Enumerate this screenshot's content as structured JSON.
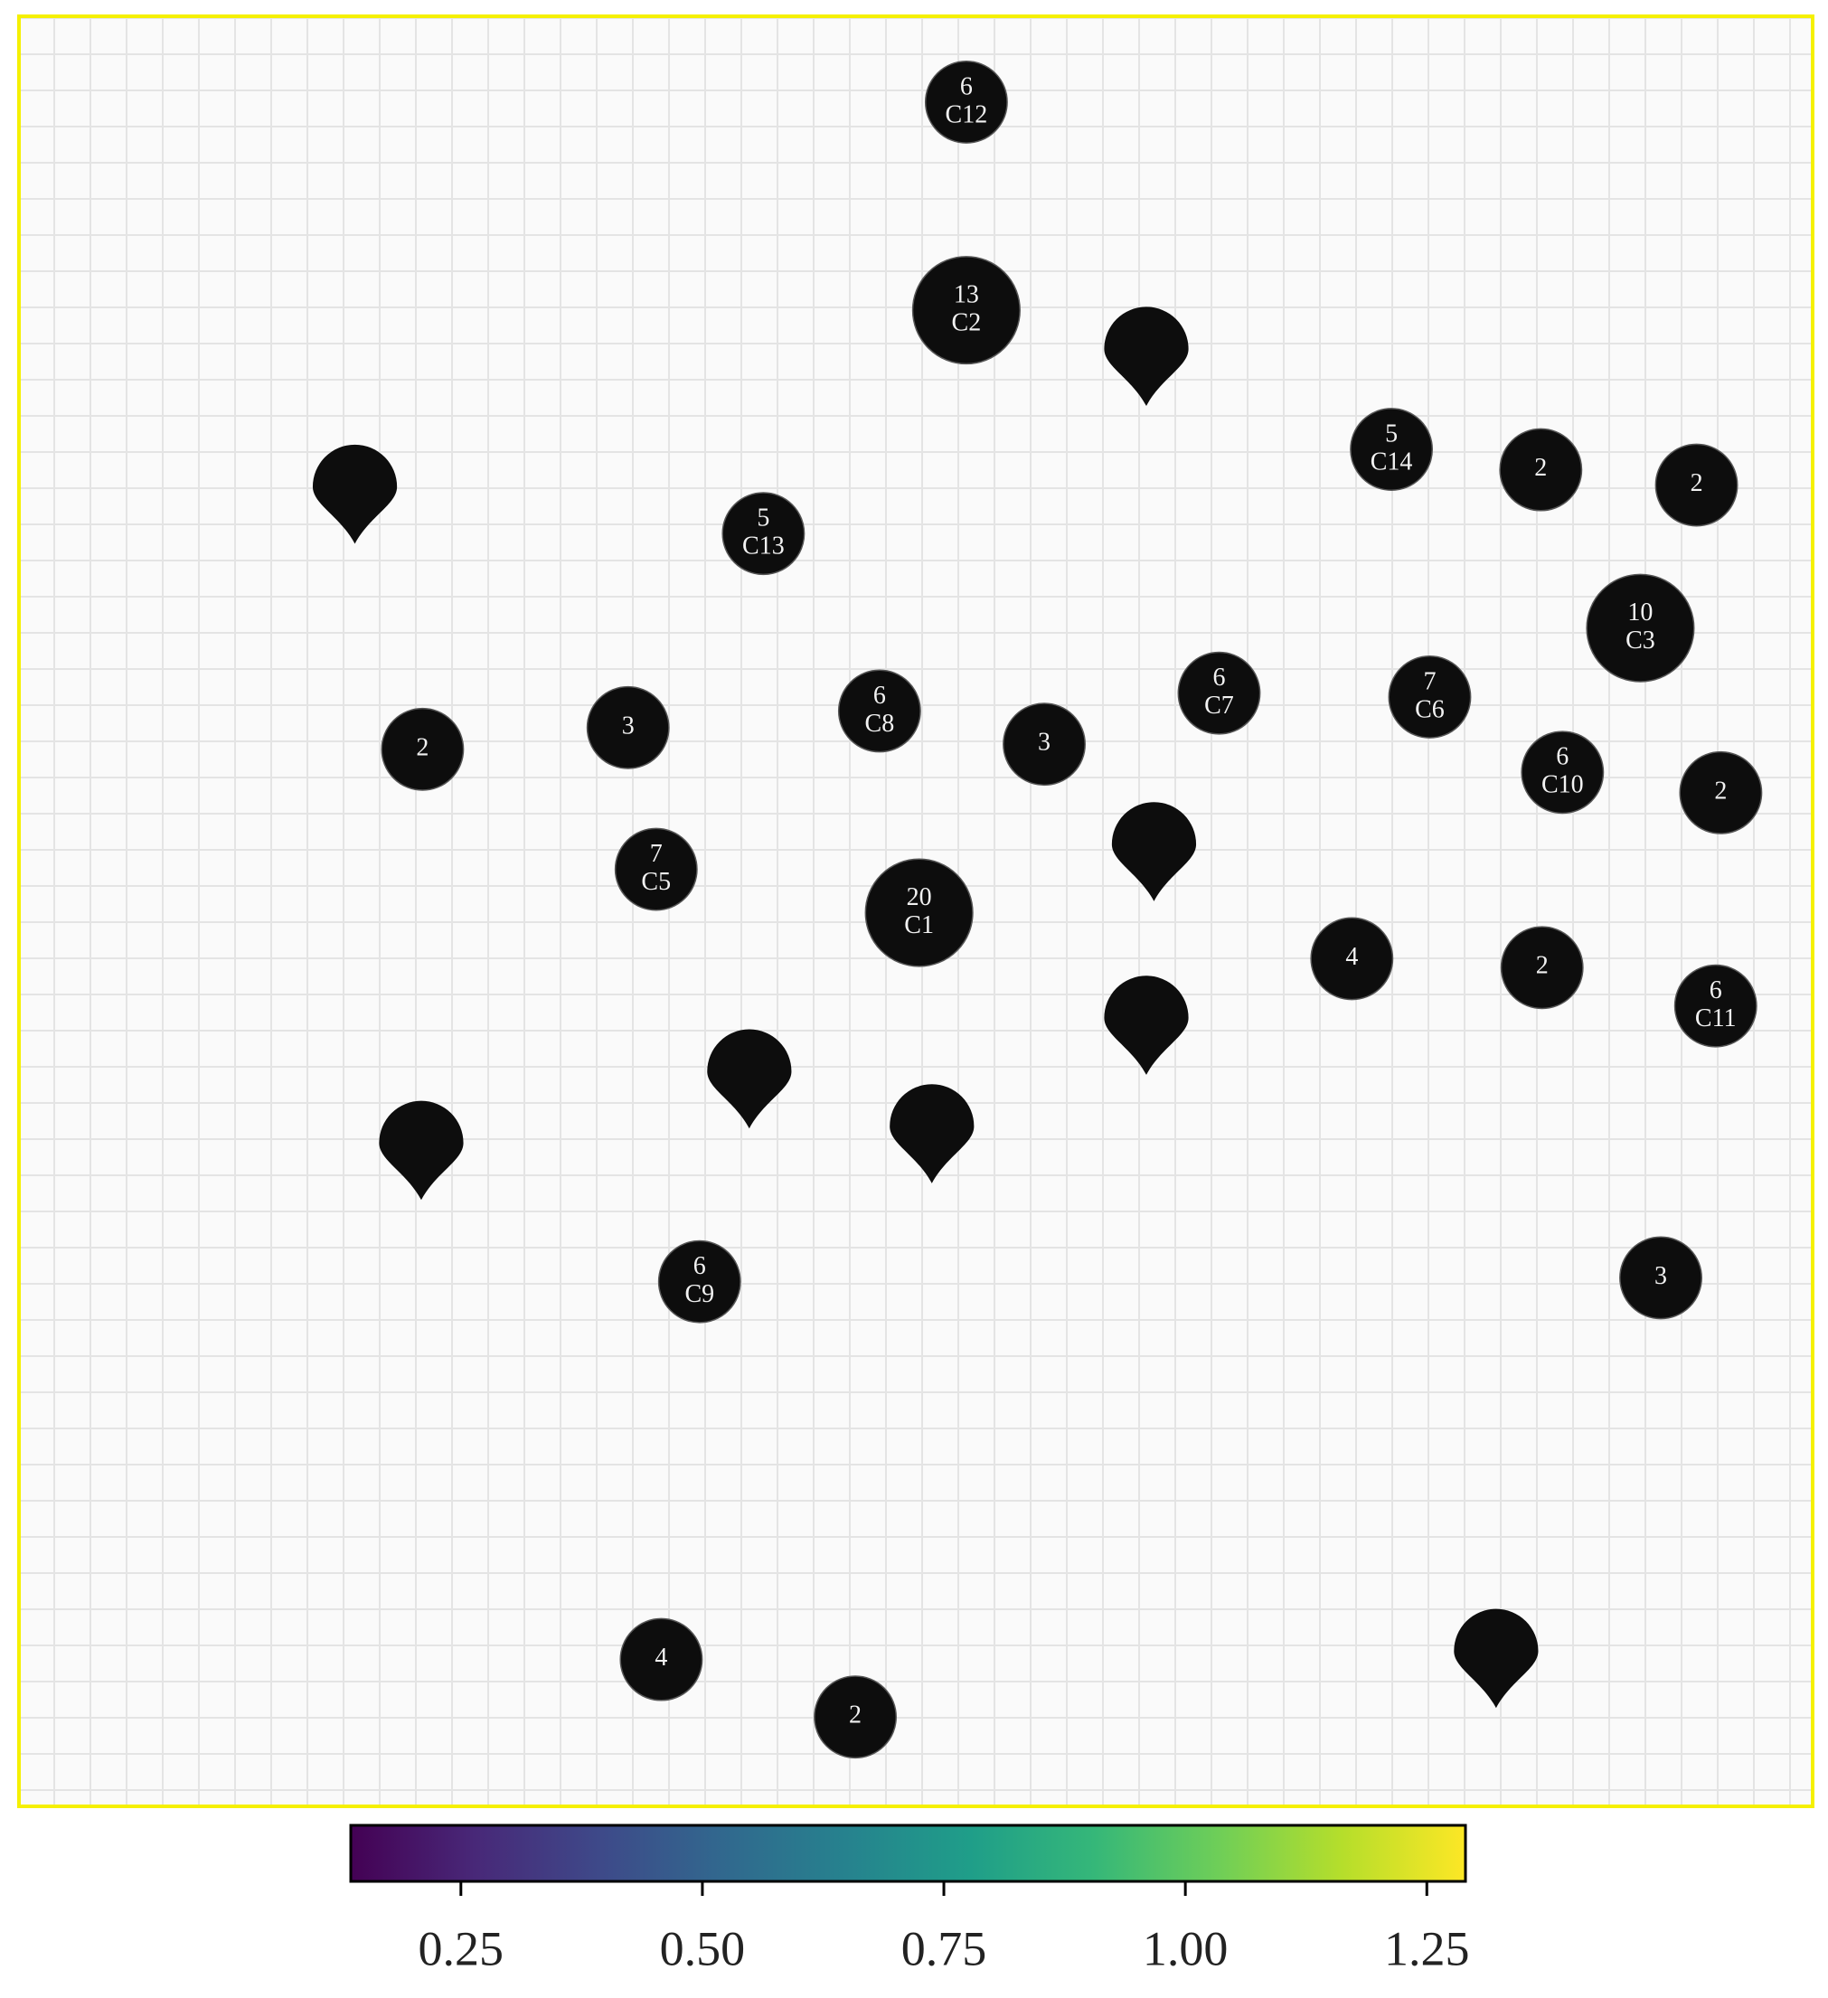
{
  "map": {
    "clusters": [
      {
        "count": 6,
        "label": "C12"
      },
      {
        "count": 13,
        "label": "C2"
      },
      {
        "count": 5,
        "label": "C14"
      },
      {
        "count": 2
      },
      {
        "count": 2
      },
      {
        "count": 5,
        "label": "C13"
      },
      {
        "count": 10,
        "label": "C3"
      },
      {
        "count": 6,
        "label": "C7"
      },
      {
        "count": 7,
        "label": "C6"
      },
      {
        "count": 6,
        "label": "C8"
      },
      {
        "count": 3
      },
      {
        "count": 2
      },
      {
        "count": 3
      },
      {
        "count": 6,
        "label": "C10"
      },
      {
        "count": 2
      },
      {
        "count": 7,
        "label": "C5"
      },
      {
        "count": 20,
        "label": "C1"
      },
      {
        "count": 4
      },
      {
        "count": 2
      },
      {
        "count": 6,
        "label": "C11"
      },
      {
        "count": 6,
        "label": "C9"
      },
      {
        "count": 3
      },
      {
        "count": 4
      },
      {
        "count": 2
      }
    ]
  },
  "colorbar": {
    "colormap": "viridis",
    "clim": [
      0.136,
      1.29
    ],
    "ticks": [
      {
        "value": 0.25,
        "label": "0.25"
      },
      {
        "value": 0.5,
        "label": "0.50"
      },
      {
        "value": 0.75,
        "label": "0.75"
      },
      {
        "value": 1.0,
        "label": "1.00"
      },
      {
        "value": 1.25,
        "label": "1.25"
      }
    ]
  }
}
